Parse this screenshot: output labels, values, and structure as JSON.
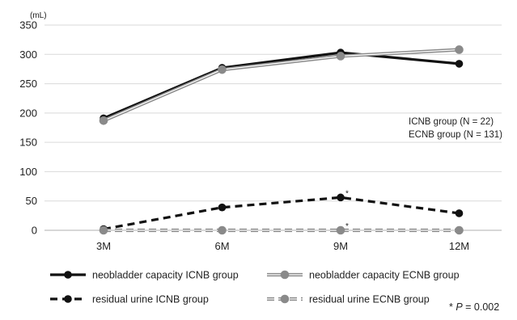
{
  "chart_data": {
    "type": "line",
    "unit": "(mL)",
    "categories": [
      "3M",
      "6M",
      "9M",
      "12M"
    ],
    "ylim": [
      0,
      350
    ],
    "yticks": [
      0,
      50,
      100,
      150,
      200,
      250,
      300,
      350
    ],
    "grid": true,
    "series": [
      {
        "name": "neobladder capacity ICNB group",
        "values": [
          191,
          277,
          303,
          284
        ],
        "color": "#111111",
        "style": "solid"
      },
      {
        "name": "neobladder capacity ECNB group",
        "values": [
          187,
          274,
          297,
          308
        ],
        "color": "#8a8a8a",
        "style": "double"
      },
      {
        "name": "residual urine ICNB group",
        "values": [
          2,
          39,
          56,
          29
        ],
        "color": "#111111",
        "style": "dashed"
      },
      {
        "name": "residual urine ECNB group",
        "values": [
          0,
          0,
          0,
          0
        ],
        "color": "#8a8a8a",
        "style": "double-dashed"
      }
    ],
    "annotations": {
      "group_sizes": [
        "ICNB group (N = 22)",
        "ECNB group (N = 131)"
      ],
      "significance_marker": "*",
      "p_value": {
        "star": "*",
        "letter": "P",
        "rest": " = 0.002"
      }
    },
    "legend_position": "bottom"
  }
}
